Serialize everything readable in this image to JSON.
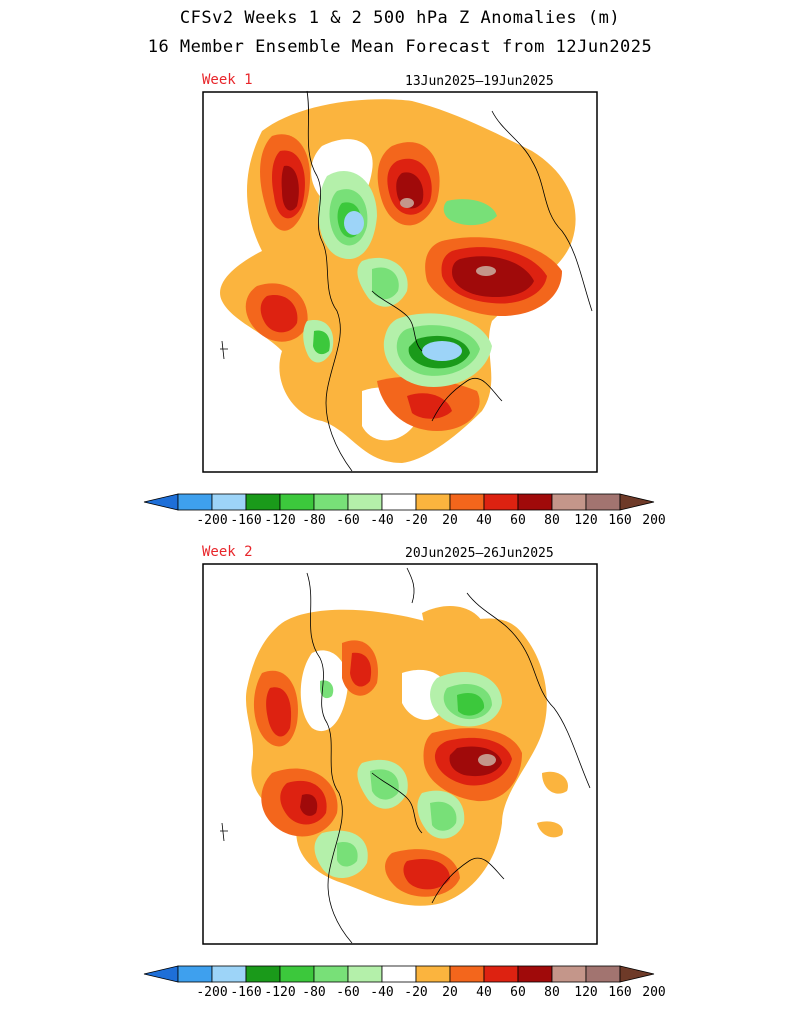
{
  "title": "CFSv2 Weeks 1 & 2 500 hPa Z Anomalies (m)",
  "subtitle": "16 Member Ensemble Mean Forecast from 12Jun2025",
  "panels": [
    {
      "label": "Week 1",
      "dates": "13Jun2025–19Jun2025"
    },
    {
      "label": "Week 2",
      "dates": "20Jun2025–26Jun2025"
    }
  ],
  "colorbar": {
    "ticks": [
      "-200",
      "-160",
      "-120",
      "-80",
      "-60",
      "-40",
      "-20",
      "20",
      "40",
      "60",
      "80",
      "120",
      "160",
      "200"
    ],
    "colors": [
      "#1e6fd8",
      "#3ea0ee",
      "#9dd4f8",
      "#1a9a1a",
      "#3cc83c",
      "#78e078",
      "#b4f0aa",
      "#ffffff",
      "#fbb43e",
      "#f3661c",
      "#dd2211",
      "#a00a0a",
      "#c4968a",
      "#a27470",
      "#6e3a28"
    ]
  },
  "colors": {
    "label": "#e8262b",
    "pos20": "#fbb43e",
    "pos40": "#f3661c",
    "pos60": "#dd2211",
    "pos80": "#a00a0a",
    "pos120": "#c4968a",
    "neg20": "#b4f0aa",
    "neg40": "#78e078",
    "neg60": "#3cc83c",
    "neg80": "#1a9a1a",
    "neg120": "#9dd4f8"
  }
}
